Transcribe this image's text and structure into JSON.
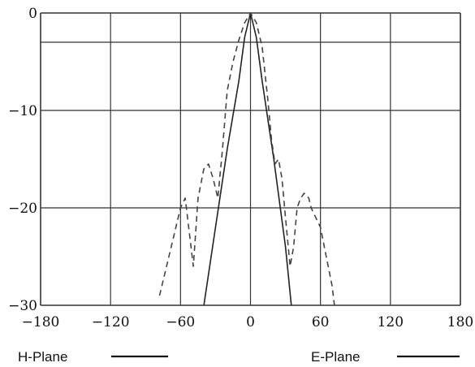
{
  "chart_data": {
    "type": "line",
    "title": "",
    "xlabel": "",
    "ylabel": "",
    "xlim": [
      -180,
      180
    ],
    "ylim": [
      -30,
      0
    ],
    "x_ticks": [
      -180,
      -120,
      -60,
      0,
      60,
      120,
      180
    ],
    "y_ticks": [
      0,
      -10,
      -20,
      -30
    ],
    "grid": true,
    "extra_gridline_y": -3,
    "series": [
      {
        "name": "H-Plane",
        "style": "solid",
        "color": "#222222",
        "x": [
          -40,
          -30,
          -20,
          -10,
          -5,
          0,
          5,
          10,
          20,
          30,
          35
        ],
        "y": [
          -30,
          -22,
          -14,
          -7,
          -2.5,
          0,
          -2.5,
          -7,
          -15,
          -24,
          -30
        ]
      },
      {
        "name": "E-Plane",
        "style": "dashed",
        "color": "#444444",
        "x": [
          -78,
          -70,
          -60,
          -56,
          -53,
          -49,
          -45,
          -40,
          -36,
          -32,
          -28,
          -24,
          -20,
          -15,
          -10,
          -5,
          0,
          5,
          10,
          15,
          18,
          21,
          24,
          27,
          30,
          34,
          37,
          40,
          43,
          46,
          50,
          52,
          56,
          60,
          65,
          70,
          72
        ],
        "y": [
          -29,
          -25,
          -20,
          -19,
          -22,
          -26,
          -19,
          -16,
          -15.5,
          -17,
          -19,
          -14,
          -8,
          -5,
          -2.8,
          -1,
          0,
          -1,
          -3.5,
          -9,
          -13,
          -15.5,
          -15,
          -17,
          -21,
          -26,
          -24,
          -20,
          -19,
          -18.5,
          -19,
          -20,
          -21,
          -22,
          -25,
          -28,
          -30
        ]
      }
    ],
    "legend": {
      "placement": "bottom",
      "items": [
        {
          "label": "H-Plane"
        },
        {
          "label": "E-Plane"
        }
      ]
    }
  }
}
